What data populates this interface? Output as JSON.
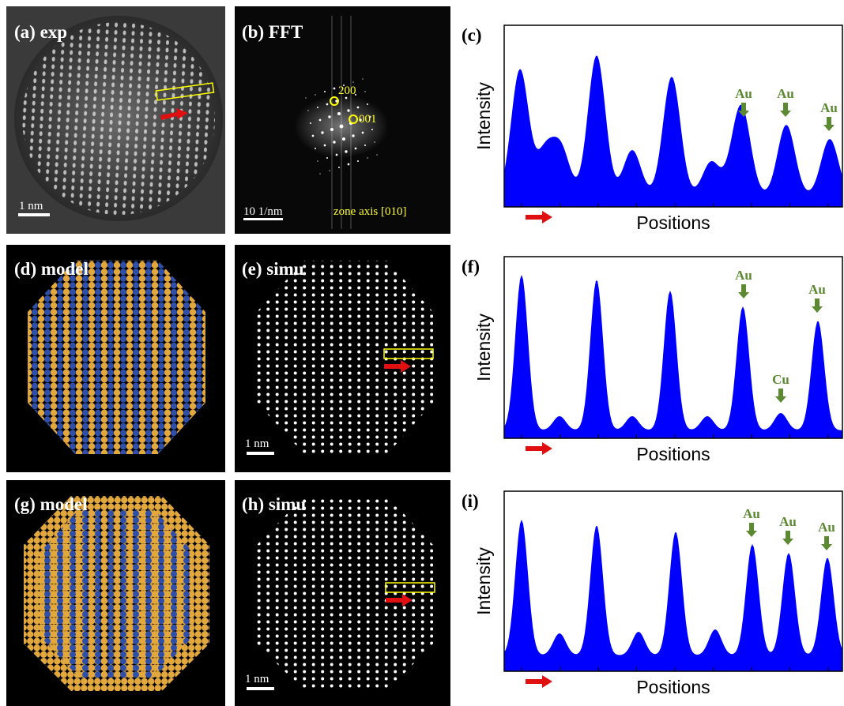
{
  "panels": [
    {
      "label": "(a) exp",
      "scale_bar": "1 nm"
    },
    {
      "label": "(b) FFT",
      "scale_bar": "10 1/nm",
      "zone_axis": "zone axis [010]",
      "spots": [
        "200",
        "001"
      ]
    },
    {
      "label": "(c)",
      "y_label": "Intensity",
      "x_label": "Positions",
      "peaks": [
        "Au",
        "Au",
        "Au"
      ]
    },
    {
      "label": "(d) model"
    },
    {
      "label": "(e) simu",
      "scale_bar": "1 nm"
    },
    {
      "label": "(f)",
      "y_label": "Intensity",
      "x_label": "Positions",
      "peaks": [
        "Au",
        "Au",
        "Cu"
      ]
    },
    {
      "label": "(g) model"
    },
    {
      "label": "(h) simu",
      "scale_bar": "1 nm"
    },
    {
      "label": "(i)",
      "y_label": "Intensity",
      "x_label": "Positions",
      "peaks": [
        "Au",
        "Au",
        "Au"
      ]
    }
  ]
}
